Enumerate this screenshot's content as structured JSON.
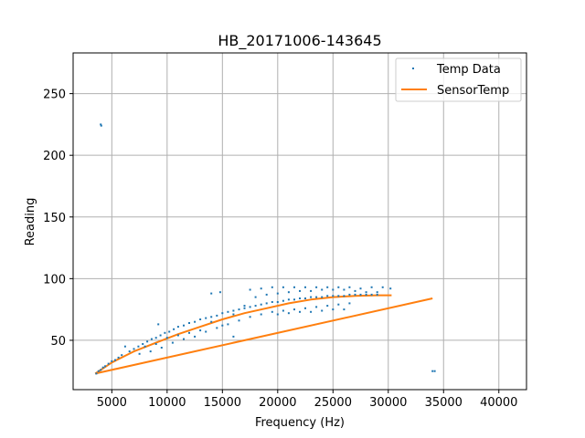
{
  "chart_data": {
    "type": "scatter",
    "title": "HB_20171006-143645",
    "xlabel": "Frequency (Hz)",
    "ylabel": "Reading",
    "xlim": [
      1500,
      42500
    ],
    "ylim": [
      10,
      283
    ],
    "xticks": [
      5000,
      10000,
      15000,
      20000,
      25000,
      30000,
      35000,
      40000
    ],
    "yticks": [
      50,
      100,
      150,
      200,
      250
    ],
    "grid": true,
    "legend_position": "top-right",
    "series": [
      {
        "name": "Temp Data",
        "kind": "scatter",
        "color": "#1f77b4",
        "points": [
          [
            4000,
            225
          ],
          [
            4050,
            224
          ],
          [
            34000,
            25
          ],
          [
            34200,
            25
          ],
          [
            3600,
            23
          ],
          [
            3800,
            25
          ],
          [
            4000,
            26
          ],
          [
            4200,
            28
          ],
          [
            4400,
            29
          ],
          [
            4700,
            31
          ],
          [
            5000,
            33
          ],
          [
            5300,
            34
          ],
          [
            5600,
            36
          ],
          [
            5900,
            38
          ],
          [
            6200,
            45
          ],
          [
            6600,
            41
          ],
          [
            7000,
            43
          ],
          [
            7400,
            45
          ],
          [
            7800,
            47
          ],
          [
            8200,
            49
          ],
          [
            8600,
            51
          ],
          [
            9000,
            52
          ],
          [
            9200,
            63
          ],
          [
            9400,
            54
          ],
          [
            9800,
            56
          ],
          [
            10200,
            57
          ],
          [
            10600,
            59
          ],
          [
            11000,
            61
          ],
          [
            11500,
            62
          ],
          [
            12000,
            64
          ],
          [
            12500,
            65
          ],
          [
            13000,
            67
          ],
          [
            13500,
            68
          ],
          [
            14000,
            69
          ],
          [
            14500,
            70
          ],
          [
            15000,
            72
          ],
          [
            15500,
            73
          ],
          [
            16000,
            74
          ],
          [
            16500,
            75
          ],
          [
            17000,
            76
          ],
          [
            17500,
            77
          ],
          [
            18000,
            78
          ],
          [
            18500,
            79
          ],
          [
            19000,
            80
          ],
          [
            19500,
            81
          ],
          [
            20000,
            81
          ],
          [
            20500,
            82
          ],
          [
            21000,
            83
          ],
          [
            21500,
            83
          ],
          [
            22000,
            84
          ],
          [
            22500,
            84
          ],
          [
            23000,
            85
          ],
          [
            23500,
            85
          ],
          [
            24000,
            85
          ],
          [
            24500,
            86
          ],
          [
            25000,
            86
          ],
          [
            25500,
            86
          ],
          [
            26000,
            86
          ],
          [
            26500,
            87
          ],
          [
            27000,
            87
          ],
          [
            27500,
            87
          ],
          [
            28000,
            87
          ],
          [
            28500,
            87
          ],
          [
            29000,
            87
          ],
          [
            7500,
            39
          ],
          [
            8500,
            41
          ],
          [
            9500,
            44
          ],
          [
            10500,
            48
          ],
          [
            11500,
            51
          ],
          [
            12500,
            53
          ],
          [
            13500,
            57
          ],
          [
            14500,
            60
          ],
          [
            15500,
            63
          ],
          [
            16500,
            66
          ],
          [
            17500,
            69
          ],
          [
            18500,
            71
          ],
          [
            19500,
            73
          ],
          [
            20500,
            74
          ],
          [
            21500,
            75
          ],
          [
            22500,
            76
          ],
          [
            23500,
            77
          ],
          [
            24500,
            78
          ],
          [
            25500,
            79
          ],
          [
            26500,
            80
          ],
          [
            14000,
            88
          ],
          [
            14800,
            89
          ],
          [
            17500,
            91
          ],
          [
            18500,
            92
          ],
          [
            19500,
            93
          ],
          [
            20500,
            93
          ],
          [
            21500,
            93
          ],
          [
            22500,
            93
          ],
          [
            23500,
            93
          ],
          [
            24500,
            93
          ],
          [
            25500,
            93
          ],
          [
            26500,
            93
          ],
          [
            27500,
            92
          ],
          [
            28500,
            93
          ],
          [
            29500,
            93
          ],
          [
            30200,
            92
          ],
          [
            16000,
            53
          ],
          [
            17000,
            78
          ],
          [
            18000,
            85
          ],
          [
            19000,
            87
          ],
          [
            20000,
            88
          ],
          [
            21000,
            89
          ],
          [
            22000,
            90
          ],
          [
            23000,
            90
          ],
          [
            24000,
            91
          ],
          [
            25000,
            91
          ],
          [
            26000,
            91
          ],
          [
            27000,
            90
          ],
          [
            28000,
            89
          ],
          [
            29000,
            89
          ],
          [
            20000,
            71
          ],
          [
            21000,
            72
          ],
          [
            22000,
            73
          ],
          [
            23000,
            73
          ],
          [
            24000,
            74
          ],
          [
            25000,
            75
          ],
          [
            26000,
            75
          ],
          [
            16000,
            71
          ],
          [
            15000,
            62
          ],
          [
            14000,
            65
          ],
          [
            13000,
            58
          ],
          [
            12000,
            56
          ],
          [
            11000,
            54
          ],
          [
            10000,
            52
          ],
          [
            9000,
            47
          ],
          [
            8000,
            45
          ]
        ]
      },
      {
        "name": "SensorTemp",
        "kind": "line",
        "color": "#ff7f0e",
        "segments": [
          [
            [
              3500,
              23
            ],
            [
              5000,
              32
            ],
            [
              7000,
              41
            ],
            [
              9000,
              48
            ],
            [
              11000,
              55
            ],
            [
              13000,
              61
            ],
            [
              15000,
              67
            ],
            [
              17000,
              72
            ],
            [
              19000,
              76
            ],
            [
              21000,
              80
            ],
            [
              23000,
              83
            ],
            [
              25000,
              85
            ],
            [
              27000,
              86
            ],
            [
              29000,
              86.5
            ],
            [
              30300,
              86.5
            ]
          ],
          [
            [
              3500,
              23
            ],
            [
              34000,
              84
            ]
          ]
        ]
      }
    ]
  }
}
